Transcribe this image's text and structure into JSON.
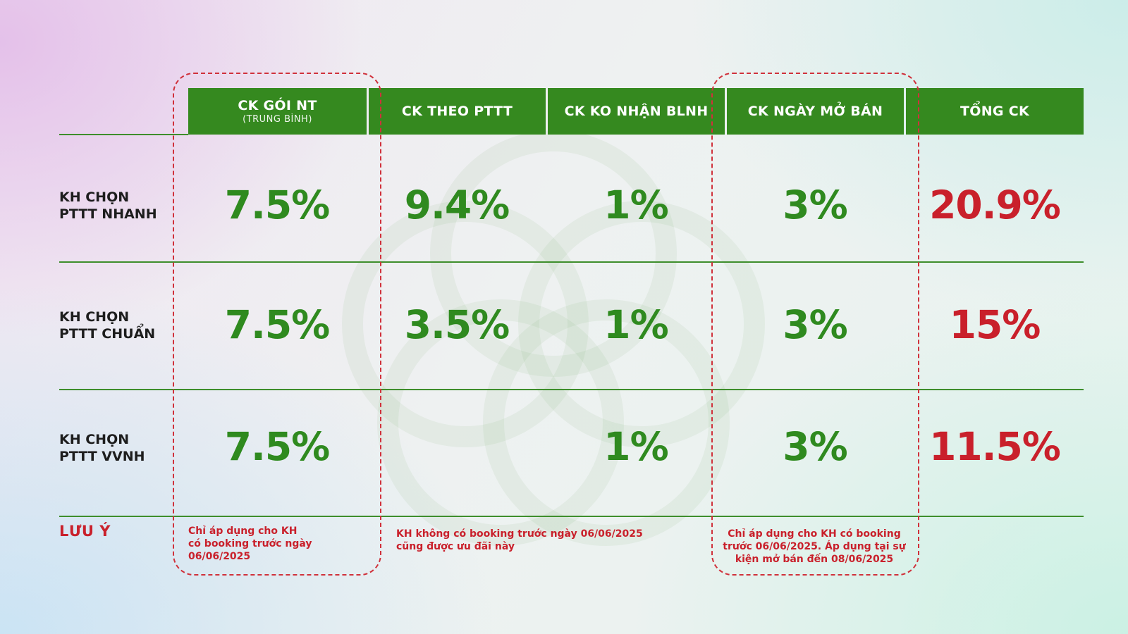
{
  "columns": [
    {
      "title": "CK GÓI NT",
      "subtitle": "(TRUNG BÌNH)"
    },
    {
      "title": "CK THEO PTTT"
    },
    {
      "title": "CK KO NHẬN BLNH"
    },
    {
      "title": "CK NGÀY MỞ BÁN"
    },
    {
      "title": "TỔNG CK"
    }
  ],
  "rows": [
    {
      "label_line1": "KH CHỌN",
      "label_line2": "PTTT NHANH",
      "values": [
        "7.5%",
        "9.4%",
        "1%",
        "3%",
        "20.9%"
      ]
    },
    {
      "label_line1": "KH CHỌN",
      "label_line2": "PTTT CHUẨN",
      "values": [
        "7.5%",
        "3.5%",
        "1%",
        "3%",
        "15%"
      ]
    },
    {
      "label_line1": "KH CHỌN",
      "label_line2": "PTTT VVNH",
      "values": [
        "7.5%",
        "",
        "1%",
        "3%",
        "11.5%"
      ]
    }
  ],
  "notes": {
    "label": "LƯU Ý",
    "col1": [
      "Chỉ áp dụng cho KH",
      "có booking trước ngày",
      "06/06/2025"
    ],
    "col2": [
      "KH không có booking trước ngày 06/06/2025",
      "cũng được ưu đãi này"
    ],
    "col4": [
      "Chỉ áp dụng cho KH có booking",
      "trước 06/06/2025. Áp dụng tại sự",
      "kiện mở bán đến 08/06/2025"
    ]
  },
  "colors": {
    "header_bg": "#35891f",
    "value_green": "#2f8a1f",
    "total_red": "#c9202b",
    "note_red": "#c9202b",
    "highlight_dash": "#d0313b"
  }
}
